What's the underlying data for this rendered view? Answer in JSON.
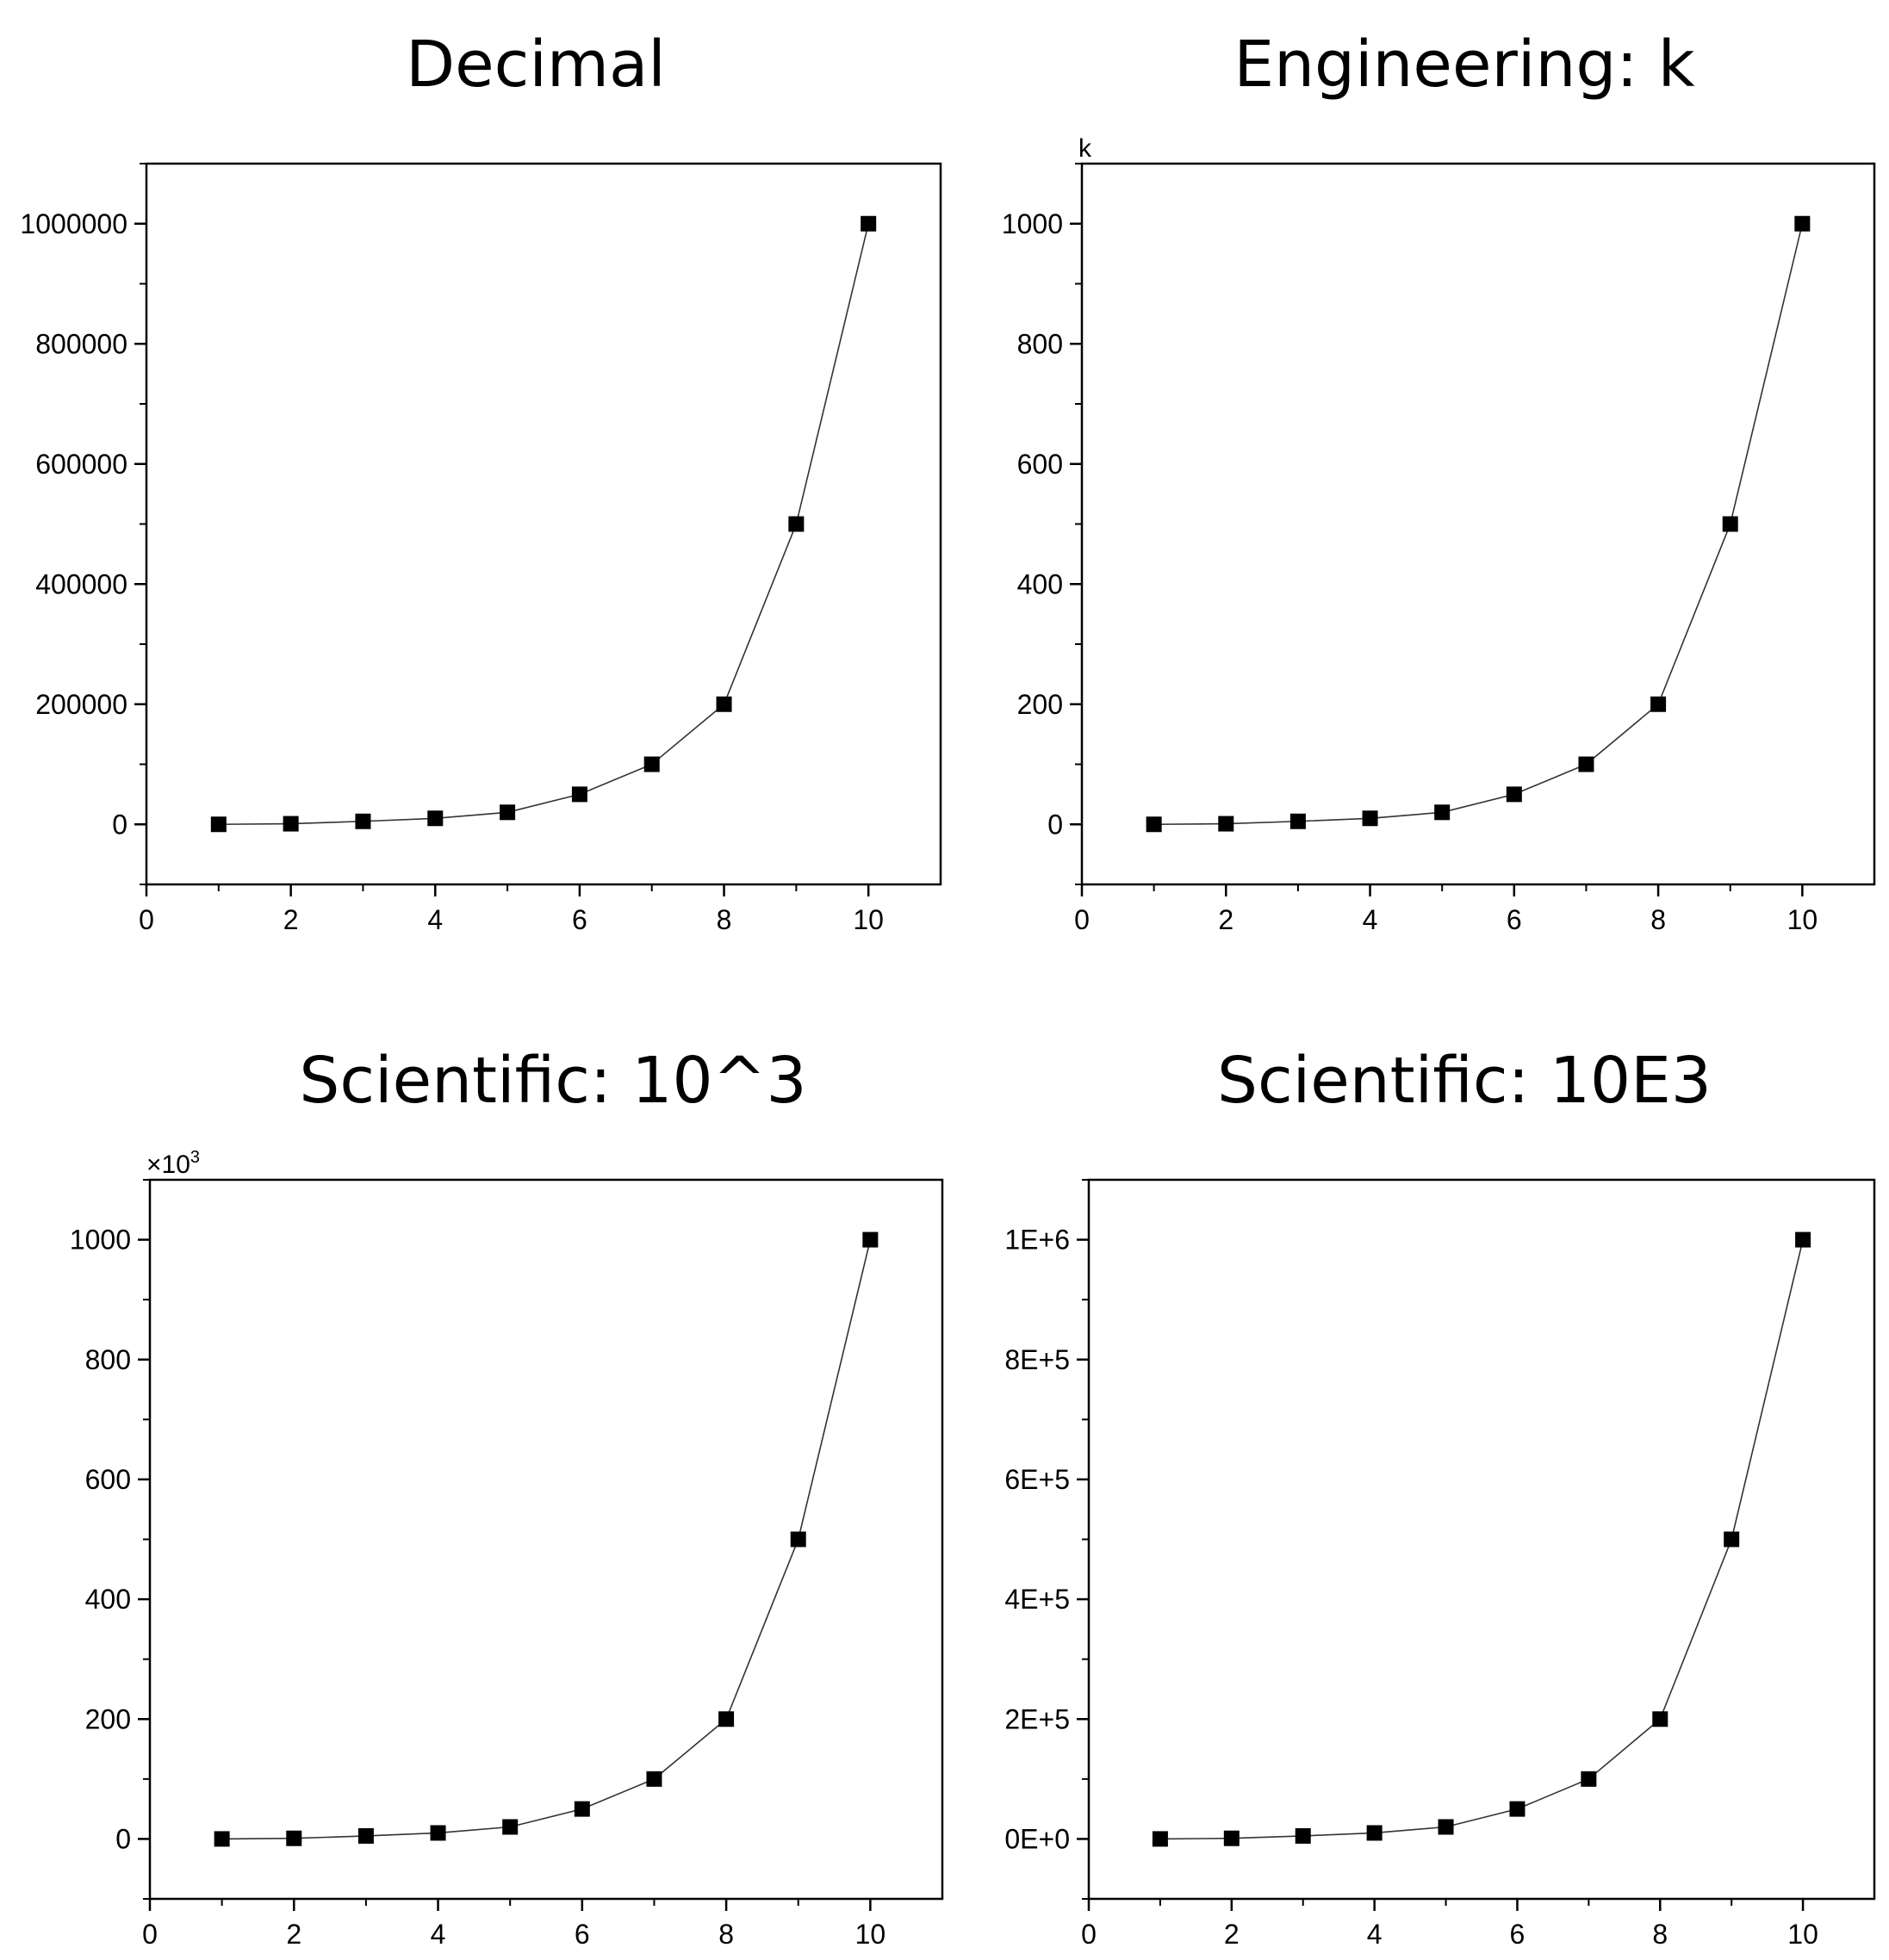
{
  "figure": {
    "colors": {
      "background": "#ffffff",
      "axis": "#000000",
      "line": "#333333",
      "marker": "#000000"
    }
  },
  "chart_data": [
    {
      "type": "line",
      "title": "Decimal",
      "xlabel": "",
      "ylabel": "",
      "xlim": [
        0,
        11
      ],
      "ylim": [
        -100000,
        1100000
      ],
      "x_ticks": [
        0,
        2,
        4,
        6,
        8,
        10
      ],
      "x_tick_labels": [
        "0",
        "2",
        "4",
        "6",
        "8",
        "10"
      ],
      "y_ticks": [
        0,
        200000,
        400000,
        600000,
        800000,
        1000000
      ],
      "y_tick_labels": [
        "0",
        "200000",
        "400000",
        "600000",
        "800000",
        "1000000"
      ],
      "unit_label": "",
      "marker": "square",
      "x": [
        1,
        2,
        3,
        4,
        5,
        6,
        7,
        8,
        9,
        10
      ],
      "y": [
        0,
        1000,
        5000,
        10000,
        20000,
        50000,
        100000,
        200000,
        500000,
        1000000
      ]
    },
    {
      "type": "line",
      "title": "Engineering: k",
      "xlabel": "",
      "ylabel": "",
      "xlim": [
        0,
        11
      ],
      "ylim": [
        -100000,
        1100000
      ],
      "x_ticks": [
        0,
        2,
        4,
        6,
        8,
        10
      ],
      "x_tick_labels": [
        "0",
        "2",
        "4",
        "6",
        "8",
        "10"
      ],
      "y_ticks": [
        0,
        200000,
        400000,
        600000,
        800000,
        1000000
      ],
      "y_tick_labels": [
        "0",
        "200",
        "400",
        "600",
        "800",
        "1000"
      ],
      "unit_label": "k",
      "marker": "square",
      "x": [
        1,
        2,
        3,
        4,
        5,
        6,
        7,
        8,
        9,
        10
      ],
      "y": [
        0,
        1000,
        5000,
        10000,
        20000,
        50000,
        100000,
        200000,
        500000,
        1000000
      ]
    },
    {
      "type": "line",
      "title": "Scientific: 10^3",
      "xlabel": "",
      "ylabel": "",
      "xlim": [
        0,
        11
      ],
      "ylim": [
        -100000,
        1100000
      ],
      "x_ticks": [
        0,
        2,
        4,
        6,
        8,
        10
      ],
      "x_tick_labels": [
        "0",
        "2",
        "4",
        "6",
        "8",
        "10"
      ],
      "y_ticks": [
        0,
        200000,
        400000,
        600000,
        800000,
        1000000
      ],
      "y_tick_labels": [
        "0",
        "200",
        "400",
        "600",
        "800",
        "1000"
      ],
      "unit_label": "×10",
      "unit_label_superscript": "3",
      "marker": "square",
      "x": [
        1,
        2,
        3,
        4,
        5,
        6,
        7,
        8,
        9,
        10
      ],
      "y": [
        0,
        1000,
        5000,
        10000,
        20000,
        50000,
        100000,
        200000,
        500000,
        1000000
      ]
    },
    {
      "type": "line",
      "title": "Scientific: 10E3",
      "xlabel": "",
      "ylabel": "",
      "xlim": [
        0,
        11
      ],
      "ylim": [
        -100000,
        1100000
      ],
      "x_ticks": [
        0,
        2,
        4,
        6,
        8,
        10
      ],
      "x_tick_labels": [
        "0",
        "2",
        "4",
        "6",
        "8",
        "10"
      ],
      "y_ticks": [
        0,
        200000,
        400000,
        600000,
        800000,
        1000000
      ],
      "y_tick_labels": [
        "0E+0",
        "2E+5",
        "4E+5",
        "6E+5",
        "8E+5",
        "1E+6"
      ],
      "unit_label": "",
      "marker": "square",
      "x": [
        1,
        2,
        3,
        4,
        5,
        6,
        7,
        8,
        9,
        10
      ],
      "y": [
        0,
        1000,
        5000,
        10000,
        20000,
        50000,
        100000,
        200000,
        500000,
        1000000
      ]
    }
  ]
}
